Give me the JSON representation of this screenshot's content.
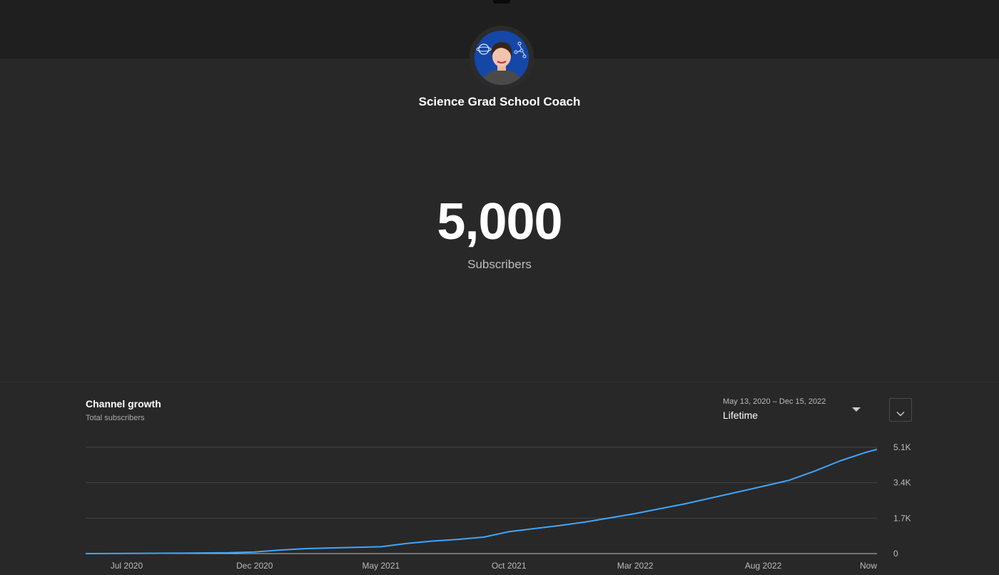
{
  "channel": {
    "name": "Science Grad School Coach"
  },
  "milestone": {
    "count": "5,000",
    "label": "Subscribers"
  },
  "growth": {
    "title": "Channel growth",
    "subtitle": "Total subscribers",
    "range_dates": "May 13, 2020 – Dec 15, 2022",
    "range_value": "Lifetime"
  },
  "icons": {
    "range_caret": "caret-down-icon",
    "expand": "chevron-down-icon"
  },
  "colors": {
    "line": "#3ea6ff",
    "background": "#282828"
  },
  "chart_data": {
    "type": "line",
    "title": "Channel growth",
    "subtitle": "Total subscribers",
    "x_tick_labels": [
      "Jul 2020",
      "Dec 2020",
      "May 2021",
      "Oct 2021",
      "Mar 2022",
      "Aug 2022",
      "Now"
    ],
    "x_tick_dates": [
      "2020-07-01",
      "2020-12-01",
      "2021-05-01",
      "2021-10-01",
      "2022-03-01",
      "2022-08-01",
      "2022-12-15"
    ],
    "y_tick_labels": [
      "0",
      "1.7K",
      "3.4K",
      "5.1K"
    ],
    "y_tick_values": [
      0,
      1700,
      3400,
      5100
    ],
    "xlim": [
      "2020-05-13",
      "2022-12-15"
    ],
    "ylim": [
      0,
      5100
    ],
    "y_axis_side": "right",
    "grid": true,
    "series": [
      {
        "points": [
          [
            "2020-05-13",
            0
          ],
          [
            "2020-07-01",
            10
          ],
          [
            "2020-09-01",
            20
          ],
          [
            "2020-11-01",
            40
          ],
          [
            "2020-12-01",
            80
          ],
          [
            "2021-01-01",
            170
          ],
          [
            "2021-02-01",
            240
          ],
          [
            "2021-03-01",
            270
          ],
          [
            "2021-05-01",
            330
          ],
          [
            "2021-06-01",
            490
          ],
          [
            "2021-07-01",
            600
          ],
          [
            "2021-08-01",
            680
          ],
          [
            "2021-09-01",
            790
          ],
          [
            "2021-10-01",
            1050
          ],
          [
            "2021-12-01",
            1350
          ],
          [
            "2022-01-01",
            1520
          ],
          [
            "2022-03-01",
            1920
          ],
          [
            "2022-05-01",
            2400
          ],
          [
            "2022-06-01",
            2680
          ],
          [
            "2022-07-01",
            2950
          ],
          [
            "2022-08-01",
            3230
          ],
          [
            "2022-09-01",
            3520
          ],
          [
            "2022-10-01",
            3950
          ],
          [
            "2022-11-01",
            4450
          ],
          [
            "2022-12-01",
            4850
          ],
          [
            "2022-12-15",
            5000
          ]
        ]
      }
    ]
  }
}
